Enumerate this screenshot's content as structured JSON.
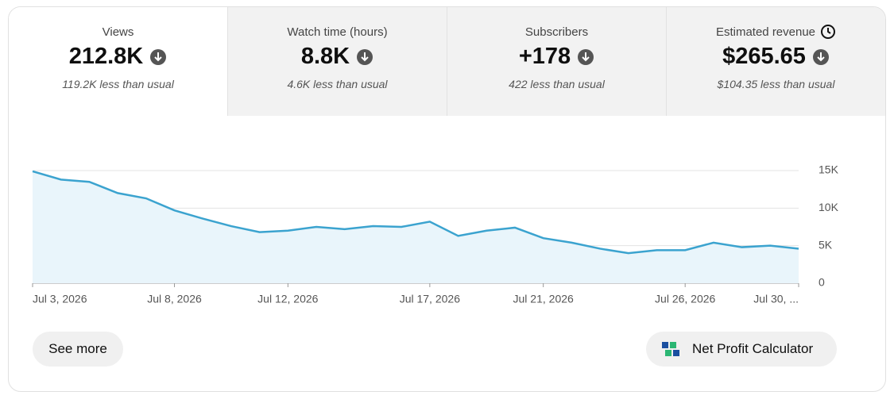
{
  "tabs": [
    {
      "label": "Views",
      "value": "212.8K",
      "note": "119.2K less than usual"
    },
    {
      "label": "Watch time (hours)",
      "value": "8.8K",
      "note": "4.6K less than usual"
    },
    {
      "label": "Subscribers",
      "value": "+178",
      "note": "422 less than usual"
    },
    {
      "label": "Estimated revenue",
      "value": "$265.65",
      "note": "$104.35 less than usual"
    }
  ],
  "chart_data": {
    "type": "line",
    "color": "#3ba3cf",
    "area_color": "#e9f5fb",
    "x": [
      "2026-07-03",
      "2026-07-04",
      "2026-07-05",
      "2026-07-06",
      "2026-07-07",
      "2026-07-08",
      "2026-07-09",
      "2026-07-10",
      "2026-07-11",
      "2026-07-12",
      "2026-07-13",
      "2026-07-14",
      "2026-07-15",
      "2026-07-16",
      "2026-07-17",
      "2026-07-18",
      "2026-07-19",
      "2026-07-20",
      "2026-07-21",
      "2026-07-22",
      "2026-07-23",
      "2026-07-24",
      "2026-07-25",
      "2026-07-26",
      "2026-07-27",
      "2026-07-28",
      "2026-07-29",
      "2026-07-30"
    ],
    "values": [
      14900,
      13800,
      13500,
      12000,
      11300,
      9700,
      8600,
      7600,
      6800,
      7000,
      7500,
      7200,
      7600,
      7500,
      8200,
      6300,
      7000,
      7400,
      6000,
      5400,
      4600,
      4000,
      4400,
      4400,
      5400,
      4800,
      5000,
      4600
    ],
    "ylim": [
      0,
      15000
    ],
    "yticks": [
      0,
      {
        "value": 5000,
        "label": "5K"
      },
      {
        "value": 10000,
        "label": "10K"
      },
      {
        "value": 15000,
        "label": "15K"
      }
    ],
    "xticks": [
      {
        "value": "2026-07-03",
        "label": "Jul 3, 2026"
      },
      {
        "value": "2026-07-08",
        "label": "Jul 8, 2026"
      },
      {
        "value": "2026-07-12",
        "label": "Jul 12, 2026"
      },
      {
        "value": "2026-07-17",
        "label": "Jul 17, 2026"
      },
      {
        "value": "2026-07-21",
        "label": "Jul 21, 2026"
      },
      {
        "value": "2026-07-26",
        "label": "Jul 26, 2026"
      },
      {
        "value": "2026-07-30",
        "label": "Jul 30, ..."
      }
    ],
    "grid": true
  },
  "buttons": {
    "see_more": "See more",
    "calculator": "Net Profit Calculator"
  }
}
